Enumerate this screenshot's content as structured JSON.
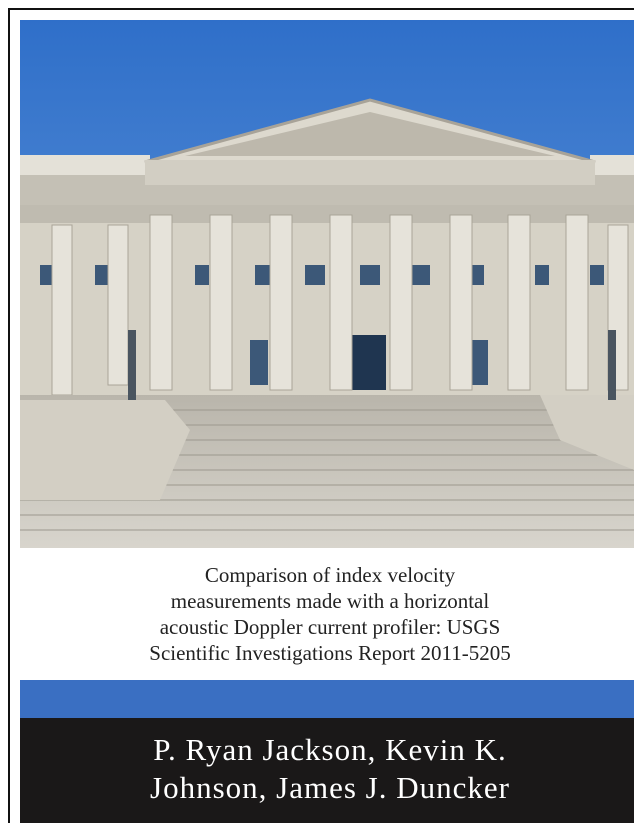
{
  "cover": {
    "title_lines": [
      "Comparison of index velocity",
      "measurements made with a horizontal",
      "acoustic Doppler current profiler: USGS",
      "Scientific Investigations Report 2011-5205"
    ],
    "author_lines": [
      "P. Ryan Jackson, Kevin K.",
      "Johnson, James J. Duncker"
    ]
  }
}
